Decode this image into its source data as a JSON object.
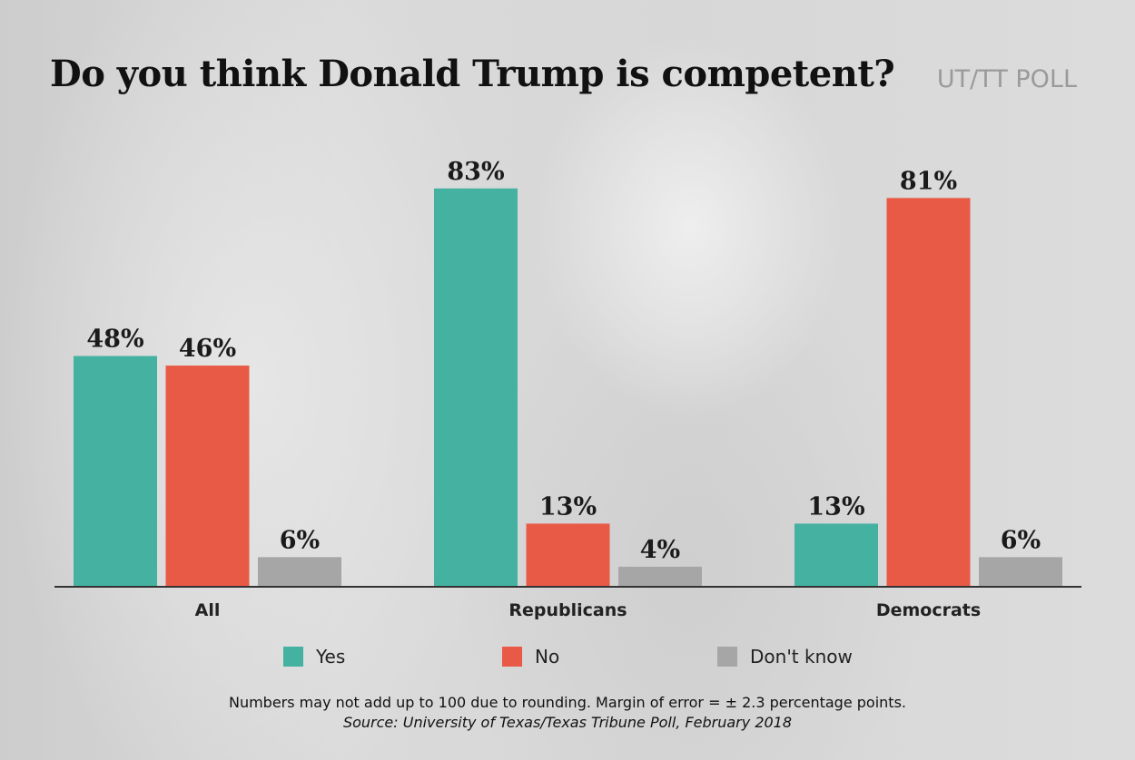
{
  "header": {
    "title": "Do you think Donald Trump is competent?",
    "poll_label": "UT/TT POLL"
  },
  "colors": {
    "yes": "#45b1a1",
    "no": "#e85a46",
    "dont_know": "#a6a6a6",
    "axis": "#333333"
  },
  "chart_data": {
    "type": "bar",
    "title": "Do you think Donald Trump is competent?",
    "categories": [
      "All",
      "Republicans",
      "Democrats"
    ],
    "series": [
      {
        "name": "Yes",
        "values": [
          48,
          83,
          13
        ],
        "labels": [
          "48%",
          "83%",
          "13%"
        ]
      },
      {
        "name": "No",
        "values": [
          46,
          13,
          81
        ],
        "labels": [
          "46%",
          "13%",
          "81%"
        ]
      },
      {
        "name": "Don't know",
        "values": [
          6,
          4,
          6
        ],
        "labels": [
          "6%",
          "4%",
          "6%"
        ]
      }
    ],
    "ylim": [
      0,
      100
    ],
    "grid": false,
    "legend_position": "bottom",
    "xlabel": "",
    "ylabel": ""
  },
  "legend": {
    "items": [
      {
        "label": "Yes",
        "color": "#45b1a1"
      },
      {
        "label": "No",
        "color": "#e85a46"
      },
      {
        "label": "Don't know",
        "color": "#a6a6a6"
      }
    ]
  },
  "footer": {
    "note": "Numbers may not add up to 100 due to rounding. Margin of error = ± 2.3 percentage points.",
    "source": "Source: University of Texas/Texas Tribune Poll, February 2018"
  }
}
